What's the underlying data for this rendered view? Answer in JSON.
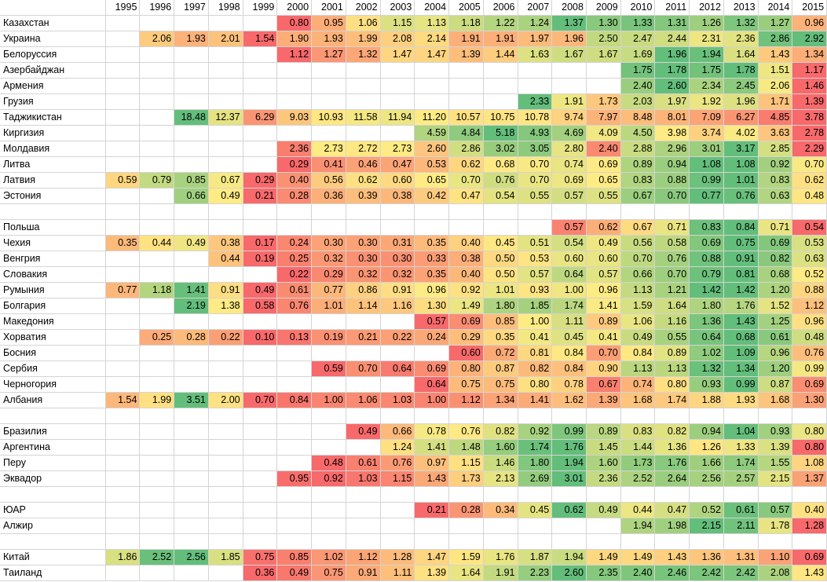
{
  "years": [
    "1995",
    "1996",
    "1997",
    "1998",
    "1999",
    "2000",
    "2001",
    "2002",
    "2003",
    "2004",
    "2005",
    "2006",
    "2007",
    "2008",
    "2009",
    "2010",
    "2011",
    "2012",
    "2013",
    "2014",
    "2015"
  ],
  "rows": [
    {
      "name": "Казахстан",
      "values": [
        null,
        null,
        null,
        null,
        null,
        0.8,
        0.95,
        1.06,
        1.15,
        1.13,
        1.18,
        1.22,
        1.24,
        1.37,
        1.3,
        1.33,
        1.31,
        1.26,
        1.32,
        1.27,
        0.96
      ]
    },
    {
      "name": "Украина",
      "values": [
        null,
        2.06,
        1.93,
        2.01,
        1.54,
        1.9,
        1.93,
        1.99,
        2.08,
        2.14,
        1.91,
        1.91,
        1.97,
        1.96,
        2.5,
        2.47,
        2.44,
        2.31,
        2.36,
        2.86,
        2.92
      ]
    },
    {
      "name": "Белоруссия",
      "values": [
        null,
        null,
        null,
        null,
        null,
        1.12,
        1.27,
        1.32,
        1.47,
        1.47,
        1.39,
        1.44,
        1.63,
        1.67,
        1.67,
        1.69,
        1.96,
        1.94,
        1.64,
        1.43,
        1.34
      ]
    },
    {
      "name": "Азербайджан",
      "values": [
        null,
        null,
        null,
        null,
        null,
        null,
        null,
        null,
        null,
        null,
        null,
        null,
        null,
        null,
        null,
        1.75,
        1.78,
        1.75,
        1.78,
        1.51,
        1.17
      ]
    },
    {
      "name": "Армения",
      "values": [
        null,
        null,
        null,
        null,
        null,
        null,
        null,
        null,
        null,
        null,
        null,
        null,
        null,
        null,
        null,
        2.4,
        2.6,
        2.34,
        2.45,
        2.06,
        1.46
      ]
    },
    {
      "name": "Грузия",
      "values": [
        null,
        null,
        null,
        null,
        null,
        null,
        null,
        null,
        null,
        null,
        null,
        null,
        2.33,
        1.91,
        1.73,
        2.03,
        1.97,
        1.92,
        1.96,
        1.71,
        1.39
      ]
    },
    {
      "name": "Таджикистан",
      "values": [
        null,
        null,
        18.48,
        12.37,
        6.29,
        9.03,
        10.93,
        11.58,
        11.94,
        11.2,
        10.57,
        10.75,
        10.78,
        9.74,
        7.97,
        8.48,
        8.01,
        7.09,
        6.27,
        4.85,
        3.78
      ]
    },
    {
      "name": "Киргизия",
      "values": [
        null,
        null,
        null,
        null,
        null,
        null,
        null,
        null,
        null,
        4.59,
        4.84,
        5.18,
        4.93,
        4.69,
        4.09,
        4.5,
        3.98,
        3.74,
        4.02,
        3.63,
        2.78
      ]
    },
    {
      "name": "Молдавия",
      "values": [
        null,
        null,
        null,
        null,
        null,
        2.36,
        2.73,
        2.72,
        2.73,
        2.6,
        2.86,
        3.02,
        3.05,
        2.8,
        2.4,
        2.88,
        2.96,
        3.01,
        3.17,
        2.85,
        2.29
      ]
    },
    {
      "name": "Литва",
      "values": [
        null,
        null,
        null,
        null,
        null,
        0.29,
        0.41,
        0.46,
        0.47,
        0.53,
        0.62,
        0.68,
        0.7,
        0.74,
        0.69,
        0.89,
        0.94,
        1.08,
        1.08,
        0.92,
        0.7
      ]
    },
    {
      "name": "Латвия",
      "values": [
        0.59,
        0.79,
        0.85,
        0.67,
        0.29,
        0.4,
        0.56,
        0.62,
        0.6,
        0.65,
        0.7,
        0.76,
        0.7,
        0.69,
        0.65,
        0.83,
        0.88,
        0.99,
        1.01,
        0.83,
        0.62
      ]
    },
    {
      "name": "Эстония",
      "values": [
        null,
        null,
        0.66,
        0.49,
        0.21,
        0.28,
        0.36,
        0.39,
        0.38,
        0.42,
        0.47,
        0.54,
        0.55,
        0.57,
        0.55,
        0.67,
        0.7,
        0.77,
        0.76,
        0.63,
        0.48
      ]
    },
    {
      "name": "",
      "values": []
    },
    {
      "name": "Польша",
      "values": [
        null,
        null,
        null,
        null,
        null,
        null,
        null,
        null,
        null,
        null,
        null,
        null,
        null,
        0.57,
        0.62,
        0.67,
        0.71,
        0.83,
        0.84,
        0.71,
        0.54
      ]
    },
    {
      "name": "Чехия",
      "values": [
        0.35,
        0.44,
        0.49,
        0.38,
        0.17,
        0.24,
        0.3,
        0.3,
        0.31,
        0.35,
        0.4,
        0.45,
        0.51,
        0.54,
        0.49,
        0.56,
        0.58,
        0.69,
        0.75,
        0.69,
        0.53
      ]
    },
    {
      "name": "Венгрия",
      "values": [
        null,
        null,
        null,
        0.44,
        0.19,
        0.25,
        0.32,
        0.3,
        0.3,
        0.33,
        0.38,
        0.5,
        0.53,
        0.6,
        0.6,
        0.7,
        0.76,
        0.88,
        0.91,
        0.82,
        0.63
      ]
    },
    {
      "name": "Словакия",
      "values": [
        null,
        null,
        null,
        null,
        null,
        0.22,
        0.29,
        0.32,
        0.32,
        0.35,
        0.4,
        0.5,
        0.57,
        0.64,
        0.57,
        0.66,
        0.7,
        0.79,
        0.81,
        0.68,
        0.52
      ]
    },
    {
      "name": "Румыния",
      "values": [
        0.77,
        1.18,
        1.41,
        0.91,
        0.49,
        0.61,
        0.77,
        0.86,
        0.91,
        0.96,
        0.92,
        1.01,
        0.93,
        1.0,
        0.96,
        1.13,
        1.21,
        1.42,
        1.42,
        1.2,
        0.88
      ]
    },
    {
      "name": "Болгария",
      "values": [
        null,
        null,
        2.19,
        1.38,
        0.58,
        0.76,
        1.01,
        1.14,
        1.16,
        1.3,
        1.49,
        1.8,
        1.85,
        1.74,
        1.41,
        1.59,
        1.64,
        1.8,
        1.76,
        1.52,
        1.12
      ]
    },
    {
      "name": "Македония",
      "values": [
        null,
        null,
        null,
        null,
        null,
        null,
        null,
        null,
        null,
        0.57,
        0.69,
        0.85,
        1.0,
        1.11,
        0.89,
        1.06,
        1.16,
        1.36,
        1.43,
        1.25,
        0.96
      ]
    },
    {
      "name": "Хорватия",
      "values": [
        null,
        0.25,
        0.28,
        0.22,
        0.1,
        0.13,
        0.19,
        0.21,
        0.22,
        0.24,
        0.29,
        0.35,
        0.41,
        0.45,
        0.41,
        0.49,
        0.55,
        0.64,
        0.68,
        0.61,
        0.48
      ]
    },
    {
      "name": "Босния",
      "values": [
        null,
        null,
        null,
        null,
        null,
        null,
        null,
        null,
        null,
        null,
        0.6,
        0.72,
        0.81,
        0.84,
        0.7,
        0.84,
        0.89,
        1.02,
        1.09,
        0.96,
        0.76
      ]
    },
    {
      "name": "Сербия",
      "values": [
        null,
        null,
        null,
        null,
        null,
        null,
        0.59,
        0.7,
        0.64,
        0.69,
        0.8,
        0.87,
        0.82,
        0.84,
        0.9,
        1.13,
        1.13,
        1.32,
        1.34,
        1.2,
        0.99
      ]
    },
    {
      "name": "Черногория",
      "values": [
        null,
        null,
        null,
        null,
        null,
        null,
        null,
        null,
        null,
        0.64,
        0.75,
        0.75,
        0.8,
        0.78,
        0.67,
        0.74,
        0.8,
        0.93,
        0.99,
        0.87,
        0.69
      ]
    },
    {
      "name": "Албания",
      "values": [
        1.54,
        1.99,
        3.51,
        2.0,
        0.7,
        0.84,
        1.0,
        1.06,
        1.03,
        1.0,
        1.12,
        1.34,
        1.41,
        1.62,
        1.39,
        1.68,
        1.74,
        1.88,
        1.93,
        1.68,
        1.3
      ]
    },
    {
      "name": "",
      "values": []
    },
    {
      "name": "Бразилия",
      "values": [
        null,
        null,
        null,
        null,
        null,
        null,
        null,
        0.49,
        0.66,
        0.78,
        0.76,
        0.82,
        0.92,
        0.99,
        0.89,
        0.83,
        0.82,
        0.94,
        1.04,
        0.93,
        0.8
      ]
    },
    {
      "name": "Аргентина",
      "values": [
        null,
        null,
        null,
        null,
        null,
        null,
        null,
        null,
        1.24,
        1.41,
        1.48,
        1.6,
        1.74,
        1.76,
        1.45,
        1.44,
        1.36,
        1.26,
        1.33,
        1.39,
        0.8
      ]
    },
    {
      "name": "Перу",
      "values": [
        null,
        null,
        null,
        null,
        null,
        null,
        0.48,
        0.61,
        0.76,
        0.97,
        1.15,
        1.46,
        1.8,
        1.94,
        1.6,
        1.73,
        1.76,
        1.66,
        1.74,
        1.55,
        1.08
      ]
    },
    {
      "name": "Эквадор",
      "values": [
        null,
        null,
        null,
        null,
        null,
        0.95,
        0.92,
        1.03,
        1.15,
        1.43,
        1.73,
        2.13,
        2.69,
        3.01,
        2.36,
        2.52,
        2.64,
        2.56,
        2.57,
        2.15,
        1.37
      ]
    },
    {
      "name": "",
      "values": []
    },
    {
      "name": "ЮАР",
      "values": [
        null,
        null,
        null,
        null,
        null,
        null,
        null,
        null,
        null,
        0.21,
        0.28,
        0.34,
        0.45,
        0.62,
        0.49,
        0.44,
        0.47,
        0.52,
        0.61,
        0.57,
        0.4
      ]
    },
    {
      "name": "Алжир",
      "values": [
        null,
        null,
        null,
        null,
        null,
        null,
        null,
        null,
        null,
        null,
        null,
        null,
        null,
        null,
        null,
        1.94,
        1.98,
        2.15,
        2.11,
        1.78,
        1.28
      ]
    },
    {
      "name": "",
      "values": []
    },
    {
      "name": "Китай",
      "values": [
        1.86,
        2.52,
        2.56,
        1.85,
        0.75,
        0.85,
        1.02,
        1.12,
        1.28,
        1.47,
        1.59,
        1.76,
        1.87,
        1.94,
        1.49,
        1.49,
        1.43,
        1.36,
        1.31,
        1.1,
        0.69
      ]
    },
    {
      "name": "Таиланд",
      "values": [
        null,
        null,
        null,
        null,
        0.36,
        0.49,
        0.75,
        0.91,
        1.11,
        1.39,
        1.64,
        1.91,
        2.23,
        2.6,
        2.35,
        2.4,
        2.46,
        2.42,
        2.42,
        2.08,
        1.43
      ]
    }
  ],
  "colors": {
    "low": "#f8696b",
    "mid": "#ffeb84",
    "high": "#63be7b"
  }
}
